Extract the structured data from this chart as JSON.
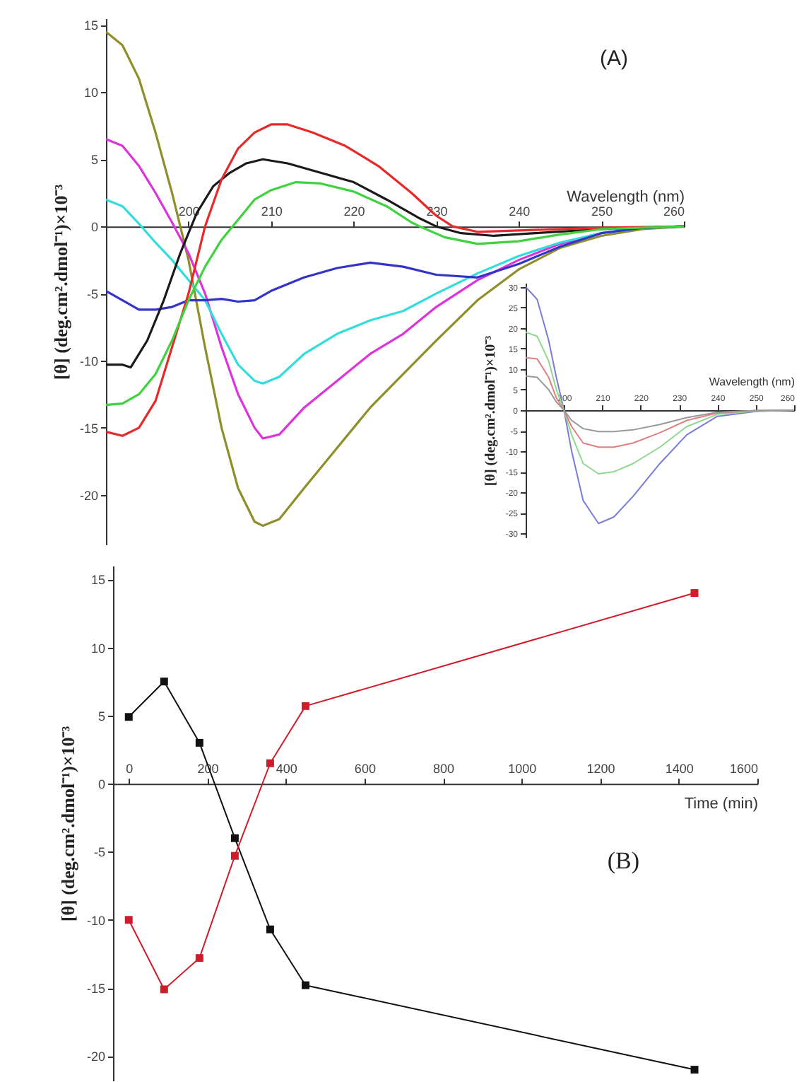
{
  "chart_data": [
    {
      "type": "line",
      "title": "(A)",
      "xlabel": "Wavelength (nm)",
      "ylabel": "[θ] (deg.cm².dmol⁻¹)×10⁻³",
      "xlim": [
        190,
        260
      ],
      "ylim": [
        -23.7,
        15.5
      ],
      "xticks": [
        200,
        210,
        220,
        230,
        240,
        250,
        260
      ],
      "yticks": [
        -20,
        -15,
        -10,
        -5,
        0,
        5,
        10,
        15
      ],
      "series": [
        {
          "color": "#8f8f2a",
          "x": [
            190,
            192,
            194,
            196,
            198,
            200,
            202,
            204,
            206,
            208,
            209,
            211,
            214,
            218,
            222,
            226,
            230,
            235,
            240,
            245,
            250,
            255,
            260
          ],
          "values": [
            14.5,
            13.5,
            11,
            7,
            2.5,
            -2.5,
            -9,
            -15,
            -19.5,
            -22,
            -22.3,
            -21.8,
            -19.5,
            -16.5,
            -13.5,
            -11,
            -8.5,
            -5.5,
            -3.2,
            -1.6,
            -0.7,
            -0.2,
            0
          ]
        },
        {
          "color": "#dd33dd",
          "x": [
            190,
            192,
            194,
            196,
            198,
            200,
            202,
            204,
            206,
            208,
            209,
            211,
            214,
            218,
            222,
            226,
            230,
            235,
            240,
            245,
            250
          ],
          "values": [
            6.5,
            6,
            4.5,
            2.5,
            0.3,
            -2,
            -5,
            -9,
            -12.5,
            -15,
            -15.8,
            -15.5,
            -13.5,
            -11.5,
            -9.5,
            -8,
            -6,
            -4,
            -2.5,
            -1.3,
            -0.5
          ]
        },
        {
          "color": "#33dddd",
          "x": [
            190,
            192,
            194,
            196,
            198,
            200,
            202,
            204,
            206,
            208,
            209,
            211,
            214,
            218,
            222,
            226,
            230,
            235,
            240,
            245,
            250,
            255,
            260
          ],
          "values": [
            2,
            1.5,
            0.2,
            -1.2,
            -2.5,
            -4,
            -5.5,
            -8,
            -10.3,
            -11.5,
            -11.7,
            -11.2,
            -9.5,
            -8,
            -7,
            -6.3,
            -5,
            -3.5,
            -2.2,
            -1.2,
            -0.5,
            -0.1,
            0
          ]
        },
        {
          "color": "#3333cc",
          "x": [
            190,
            192,
            194,
            196,
            198,
            200,
            202,
            204,
            206,
            208,
            210,
            214,
            218,
            222,
            226,
            230,
            235,
            240,
            245,
            250,
            255,
            260
          ],
          "values": [
            -4.8,
            -5.5,
            -6.2,
            -6.2,
            -6,
            -5.5,
            -5.5,
            -5.4,
            -5.6,
            -5.5,
            -4.8,
            -3.8,
            -3.1,
            -2.7,
            -3,
            -3.6,
            -3.8,
            -2.8,
            -1.5,
            -0.5,
            -0.1,
            0
          ]
        },
        {
          "color": "#1a1a1a",
          "x": [
            190,
            192,
            193,
            195,
            197,
            199,
            201,
            203,
            205,
            207,
            209,
            212,
            216,
            220,
            224,
            228,
            230,
            233,
            237,
            242,
            250,
            260
          ],
          "values": [
            -10.3,
            -10.3,
            -10.5,
            -8.5,
            -5.5,
            -2,
            1,
            3,
            4,
            4.7,
            5,
            4.7,
            4,
            3.3,
            2,
            0.6,
            0,
            -0.5,
            -0.7,
            -0.5,
            -0.2,
            0
          ]
        },
        {
          "color": "#e8292a",
          "x": [
            190,
            192,
            194,
            196,
            198,
            200,
            202,
            204,
            206,
            208,
            210,
            212,
            215,
            219,
            223,
            227,
            230,
            232,
            235,
            240,
            250,
            260
          ],
          "values": [
            -15.3,
            -15.6,
            -15,
            -13,
            -9,
            -5,
            0,
            3.5,
            5.8,
            7,
            7.6,
            7.6,
            7,
            6,
            4.5,
            2.5,
            0.8,
            0,
            -0.4,
            -0.3,
            -0.1,
            0
          ]
        },
        {
          "color": "#3fd23f",
          "x": [
            190,
            192,
            194,
            196,
            198,
            200,
            202,
            204,
            206,
            208,
            210,
            213,
            216,
            220,
            224,
            227,
            228,
            231,
            235,
            240,
            245,
            250,
            260
          ],
          "values": [
            -13.3,
            -13.2,
            -12.5,
            -11,
            -8.5,
            -5.5,
            -3,
            -1,
            0.5,
            2,
            2.7,
            3.3,
            3.2,
            2.6,
            1.5,
            0.3,
            0,
            -0.8,
            -1.3,
            -1.1,
            -0.6,
            -0.2,
            0
          ]
        }
      ]
    },
    {
      "type": "line",
      "xlabel": "Wavelength (nm)",
      "ylabel": "[θ] (deg.cm².dmol⁻¹)×10⁻³",
      "xlim": [
        190,
        260
      ],
      "ylim": [
        -31,
        31
      ],
      "xticks": [
        200,
        210,
        220,
        230,
        240,
        250,
        260
      ],
      "yticks": [
        -30,
        -25,
        -20,
        -15,
        -10,
        -5,
        0,
        5,
        10,
        15,
        20,
        25,
        30
      ],
      "series": [
        {
          "color": "#7b7bd8",
          "x": [
            190,
            193,
            196,
            198,
            200,
            202,
            205,
            209,
            213,
            218,
            225,
            232,
            240,
            250,
            260
          ],
          "values": [
            30,
            27,
            17,
            8,
            0,
            -10,
            -22,
            -27.6,
            -26,
            -21,
            -13,
            -6,
            -1.5,
            -0.3,
            0
          ]
        },
        {
          "color": "#8fd88f",
          "x": [
            190,
            193,
            196,
            198,
            200,
            202,
            205,
            209,
            213,
            218,
            225,
            232,
            240,
            250,
            260
          ],
          "values": [
            19,
            18,
            12,
            5,
            0,
            -6,
            -13,
            -15.5,
            -15,
            -13,
            -9,
            -4,
            -1,
            -0.2,
            0
          ]
        },
        {
          "color": "#e08080",
          "x": [
            190,
            193,
            196,
            198,
            200,
            202,
            205,
            209,
            213,
            218,
            225,
            232,
            240,
            250,
            260
          ],
          "values": [
            12.8,
            12.5,
            8,
            3,
            0,
            -4,
            -8,
            -9,
            -9,
            -8,
            -5.5,
            -2.5,
            -0.7,
            -0.1,
            0
          ]
        },
        {
          "color": "#999999",
          "x": [
            190,
            193,
            196,
            198,
            200,
            202,
            205,
            209,
            213,
            218,
            225,
            232,
            240,
            250,
            260
          ],
          "values": [
            8.3,
            8,
            5,
            2,
            0,
            -2.5,
            -4.5,
            -5.2,
            -5.2,
            -4.8,
            -3.5,
            -1.8,
            -0.5,
            -0.1,
            0
          ]
        }
      ]
    },
    {
      "type": "line",
      "title": "(B)",
      "xlabel": "Time (min)",
      "ylabel": "[θ] (deg.cm².dmol⁻¹)×10⁻³",
      "marker": "square",
      "xlim": [
        -40,
        1600
      ],
      "ylim": [
        -21.8,
        16
      ],
      "xticks": [
        0,
        200,
        400,
        600,
        800,
        1000,
        1200,
        1400,
        1600
      ],
      "yticks": [
        -20,
        -15,
        -10,
        -5,
        0,
        5,
        10,
        15
      ],
      "series": [
        {
          "color": "#111111",
          "x": [
            0,
            90,
            180,
            270,
            360,
            450,
            1440
          ],
          "values": [
            4.9,
            7.5,
            3.0,
            -4.0,
            -10.7,
            -14.8,
            -21.0
          ]
        },
        {
          "color": "#d01c2a",
          "x": [
            0,
            90,
            180,
            270,
            360,
            450,
            1440
          ],
          "values": [
            -10.0,
            -15.1,
            -12.8,
            -5.3,
            1.5,
            5.7,
            14.0
          ]
        }
      ]
    }
  ]
}
